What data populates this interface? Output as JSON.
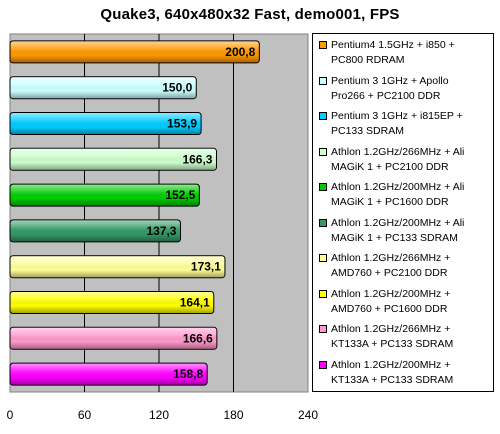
{
  "chart_data": {
    "type": "bar",
    "orientation": "horizontal",
    "title": "Quake3, 640x480x32 Fast, demo001, FPS",
    "xlim": [
      0,
      240
    ],
    "xticks": [
      "0",
      "60",
      "120",
      "180",
      "240"
    ],
    "grid": true,
    "legend_position": "right",
    "series": [
      {
        "name": "Pentium4 1.5GHz + i850 + PC800 RDRAM",
        "value": 200.8,
        "label": "200,8",
        "color": "#ff9900"
      },
      {
        "name": "Pentium 3 1GHz + Apollo Pro266 + PC2100 DDR",
        "value": 150.0,
        "label": "150,0",
        "color": "#ccffff"
      },
      {
        "name": "Pentium 3 1GHz + i815EP + PC133 SDRAM",
        "value": 153.9,
        "label": "153,9",
        "color": "#00ccff"
      },
      {
        "name": "Athlon 1.2GHz/266MHz + Ali MAGiK 1 + PC2100 DDR",
        "value": 166.3,
        "label": "166,3",
        "color": "#ccffcc"
      },
      {
        "name": "Athlon 1.2GHz/200MHz + Ali MAGiK 1 + PC1600 DDR",
        "value": 152.5,
        "label": "152,5",
        "color": "#00cc00"
      },
      {
        "name": "Athlon 1.2GHz/200MHz + Ali MAGiK 1 + PC133 SDRAM",
        "value": 137.3,
        "label": "137,3",
        "color": "#339966"
      },
      {
        "name": "Athlon 1.2GHz/266MHz + AMD760 + PC2100 DDR",
        "value": 173.1,
        "label": "173,1",
        "color": "#ffff99"
      },
      {
        "name": "Athlon 1.2GHz/200MHz + AMD760 + PC1600 DDR",
        "value": 164.1,
        "label": "164,1",
        "color": "#ffff00"
      },
      {
        "name": "Athlon 1.2GHz/266MHz + KT133A + PC133 SDRAM",
        "value": 166.6,
        "label": "166,6",
        "color": "#ff99cc"
      },
      {
        "name": "Athlon 1.2GHz/200MHz + KT133A + PC133 SDRAM",
        "value": 158.8,
        "label": "158,8",
        "color": "#ff00ff"
      }
    ],
    "legend_lines": [
      "Pentium4 1.5GHz + i850 +\nPC800 RDRAM",
      "Pentium 3 1GHz + Apollo\nPro266 + PC2100 DDR",
      "Pentium 3 1GHz + i815EP +\nPC133 SDRAM",
      "Athlon 1.2GHz/266MHz + Ali\nMAGiK 1 + PC2100 DDR",
      "Athlon 1.2GHz/200MHz + Ali\nMAGiK 1 + PC1600 DDR",
      "Athlon 1.2GHz/200MHz + Ali\nMAGiK 1 + PC133 SDRAM",
      "Athlon 1.2GHz/266MHz +\nAMD760 + PC2100 DDR",
      "Athlon 1.2GHz/200MHz +\nAMD760 + PC1600 DDR",
      "Athlon 1.2GHz/266MHz +\nKT133A + PC133 SDRAM",
      "Athlon 1.2GHz/200MHz +\nKT133A + PC133 SDRAM"
    ],
    "plot_background": "#c0c0c0"
  }
}
